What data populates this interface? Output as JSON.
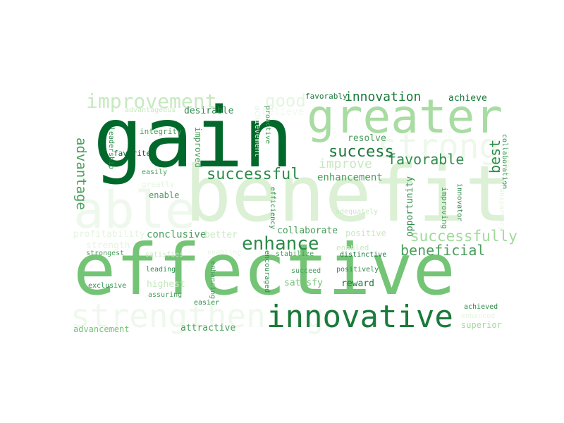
{
  "words": {
    "benefit": "benefit",
    "effective": "effective",
    "gain": "gain",
    "greater": "greater",
    "able": "able",
    "innovative": "innovative",
    "strengthening": "strengthening",
    "strong": "strong",
    "improvement": "improvement",
    "enhance": "enhance",
    "successful": "successful",
    "success": "success",
    "favorable": "favorable",
    "successfully": "successfully",
    "beneficial": "beneficial",
    "innovation": "innovation",
    "advantage": "advantage",
    "best": "best",
    "improve": "improve",
    "good": "good",
    "enhancement": "enhancement",
    "opportunity": "opportunity",
    "desirable": "desirable",
    "improved": "improved",
    "conclusive": "conclusive",
    "better": "better",
    "profitability": "profitability",
    "strength": "strength",
    "resolve": "resolve",
    "collaborate": "collaborate",
    "positive": "positive",
    "reward": "reward",
    "satisfy": "satisfy",
    "highest": "highest",
    "attractive": "attractive",
    "advancement": "advancement",
    "superior": "superior",
    "achieve": "achieve",
    "favorably": "favorably",
    "advantageous": "advantageous",
    "integrity": "integrity",
    "favorite": "favorite",
    "leadership": "leadership",
    "easily": "easily",
    "greatly": "greatly",
    "enable": "enable",
    "achievement": "achievement",
    "proactive": "proactive",
    "efficiency": "efficiency",
    "adequately": "adequately",
    "improving": "improving",
    "innovator": "innovator",
    "collaboration": "collaboration",
    "greatest": "greatest",
    "transparency": "transparency",
    "strongest": "strongest",
    "satisfies": "satisfies",
    "enabling": "enabling",
    "stabilize": "stabilize",
    "enabled": "enabled",
    "distinctive": "distinctive",
    "leading": "leading",
    "enhancing": "enhancing",
    "encouraged": "encouraged",
    "succeed": "succeed",
    "positively": "positively",
    "exclusive": "exclusive",
    "assuring": "assuring",
    "easier": "easier",
    "achieved": "achieved",
    "enhanced": "enhanced",
    "believe": "believe"
  },
  "colors": {
    "darkest": "#00682a",
    "dark": "#1a7a3a",
    "mid_dark": "#2e8b4a",
    "mid": "#4a9e5c",
    "mid_light": "#74c476",
    "light": "#a1d99b",
    "lighter": "#c7e9c0",
    "lightest": "#e5f5e0"
  }
}
